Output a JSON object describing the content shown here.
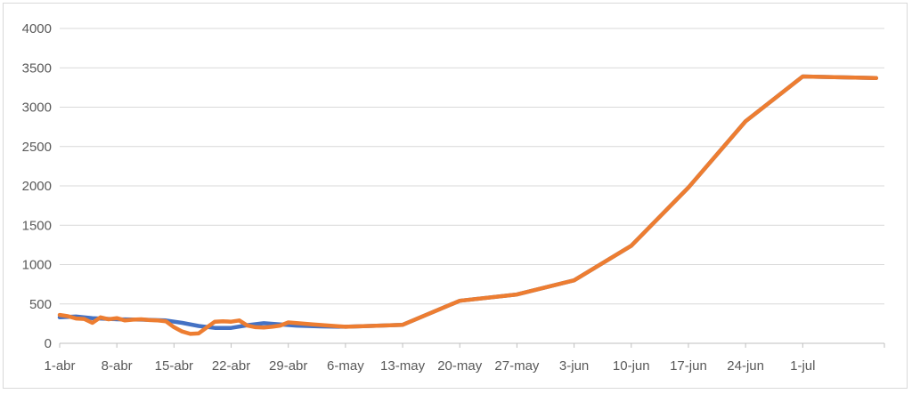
{
  "chart_data": {
    "type": "line",
    "title": "",
    "xlabel": "",
    "ylabel": "",
    "ylim": [
      0,
      4000
    ],
    "yticks": [
      0,
      500,
      1000,
      1500,
      2000,
      2500,
      3000,
      3500,
      4000
    ],
    "xlim": [
      "2020-04-01",
      "2020-07-11"
    ],
    "xticks": [
      {
        "date": "2020-04-01",
        "label": "1-abr"
      },
      {
        "date": "2020-04-08",
        "label": "8-abr"
      },
      {
        "date": "2020-04-15",
        "label": "15-abr"
      },
      {
        "date": "2020-04-22",
        "label": "22-abr"
      },
      {
        "date": "2020-04-29",
        "label": "29-abr"
      },
      {
        "date": "2020-05-06",
        "label": "6-may"
      },
      {
        "date": "2020-05-13",
        "label": "13-may"
      },
      {
        "date": "2020-05-20",
        "label": "20-may"
      },
      {
        "date": "2020-05-27",
        "label": "27-may"
      },
      {
        "date": "2020-06-03",
        "label": "3-jun"
      },
      {
        "date": "2020-06-10",
        "label": "10-jun"
      },
      {
        "date": "2020-06-17",
        "label": "17-jun"
      },
      {
        "date": "2020-06-24",
        "label": "24-jun"
      },
      {
        "date": "2020-07-01",
        "label": "1-jul"
      }
    ],
    "grid": true,
    "legend": "none",
    "series": [
      {
        "color": "#4472c4",
        "points": [
          [
            "2020-04-01",
            330
          ],
          [
            "2020-04-03",
            340
          ],
          [
            "2020-04-05",
            320
          ],
          [
            "2020-04-08",
            305
          ],
          [
            "2020-04-11",
            300
          ],
          [
            "2020-04-14",
            290
          ],
          [
            "2020-04-16",
            260
          ],
          [
            "2020-04-18",
            220
          ],
          [
            "2020-04-20",
            195
          ],
          [
            "2020-04-22",
            195
          ],
          [
            "2020-04-24",
            230
          ],
          [
            "2020-04-26",
            255
          ],
          [
            "2020-04-28",
            240
          ],
          [
            "2020-04-30",
            225
          ],
          [
            "2020-05-03",
            215
          ],
          [
            "2020-05-06",
            210
          ],
          [
            "2020-05-09",
            220
          ],
          [
            "2020-05-13",
            235
          ],
          [
            "2020-05-20",
            540
          ],
          [
            "2020-05-27",
            620
          ],
          [
            "2020-06-03",
            800
          ],
          [
            "2020-06-10",
            1240
          ],
          [
            "2020-06-17",
            1980
          ],
          [
            "2020-06-24",
            2820
          ],
          [
            "2020-07-01",
            3390
          ],
          [
            "2020-07-10",
            3370
          ]
        ]
      },
      {
        "color": "#ed7d31",
        "points": [
          [
            "2020-04-01",
            360
          ],
          [
            "2020-04-02",
            345
          ],
          [
            "2020-04-03",
            315
          ],
          [
            "2020-04-04",
            310
          ],
          [
            "2020-04-05",
            260
          ],
          [
            "2020-04-06",
            330
          ],
          [
            "2020-04-07",
            305
          ],
          [
            "2020-04-08",
            320
          ],
          [
            "2020-04-09",
            290
          ],
          [
            "2020-04-10",
            300
          ],
          [
            "2020-04-11",
            305
          ],
          [
            "2020-04-12",
            295
          ],
          [
            "2020-04-13",
            290
          ],
          [
            "2020-04-14",
            280
          ],
          [
            "2020-04-15",
            205
          ],
          [
            "2020-04-16",
            150
          ],
          [
            "2020-04-17",
            120
          ],
          [
            "2020-04-18",
            125
          ],
          [
            "2020-04-19",
            200
          ],
          [
            "2020-04-20",
            275
          ],
          [
            "2020-04-21",
            280
          ],
          [
            "2020-04-22",
            275
          ],
          [
            "2020-04-23",
            290
          ],
          [
            "2020-04-24",
            225
          ],
          [
            "2020-04-25",
            205
          ],
          [
            "2020-04-26",
            200
          ],
          [
            "2020-04-27",
            210
          ],
          [
            "2020-04-28",
            225
          ],
          [
            "2020-04-29",
            265
          ],
          [
            "2020-05-02",
            240
          ],
          [
            "2020-05-06",
            210
          ],
          [
            "2020-05-09",
            220
          ],
          [
            "2020-05-13",
            235
          ],
          [
            "2020-05-20",
            540
          ],
          [
            "2020-05-27",
            620
          ],
          [
            "2020-06-03",
            800
          ],
          [
            "2020-06-10",
            1240
          ],
          [
            "2020-06-17",
            1980
          ],
          [
            "2020-06-24",
            2820
          ],
          [
            "2020-07-01",
            3390
          ],
          [
            "2020-07-10",
            3370
          ]
        ]
      }
    ]
  }
}
